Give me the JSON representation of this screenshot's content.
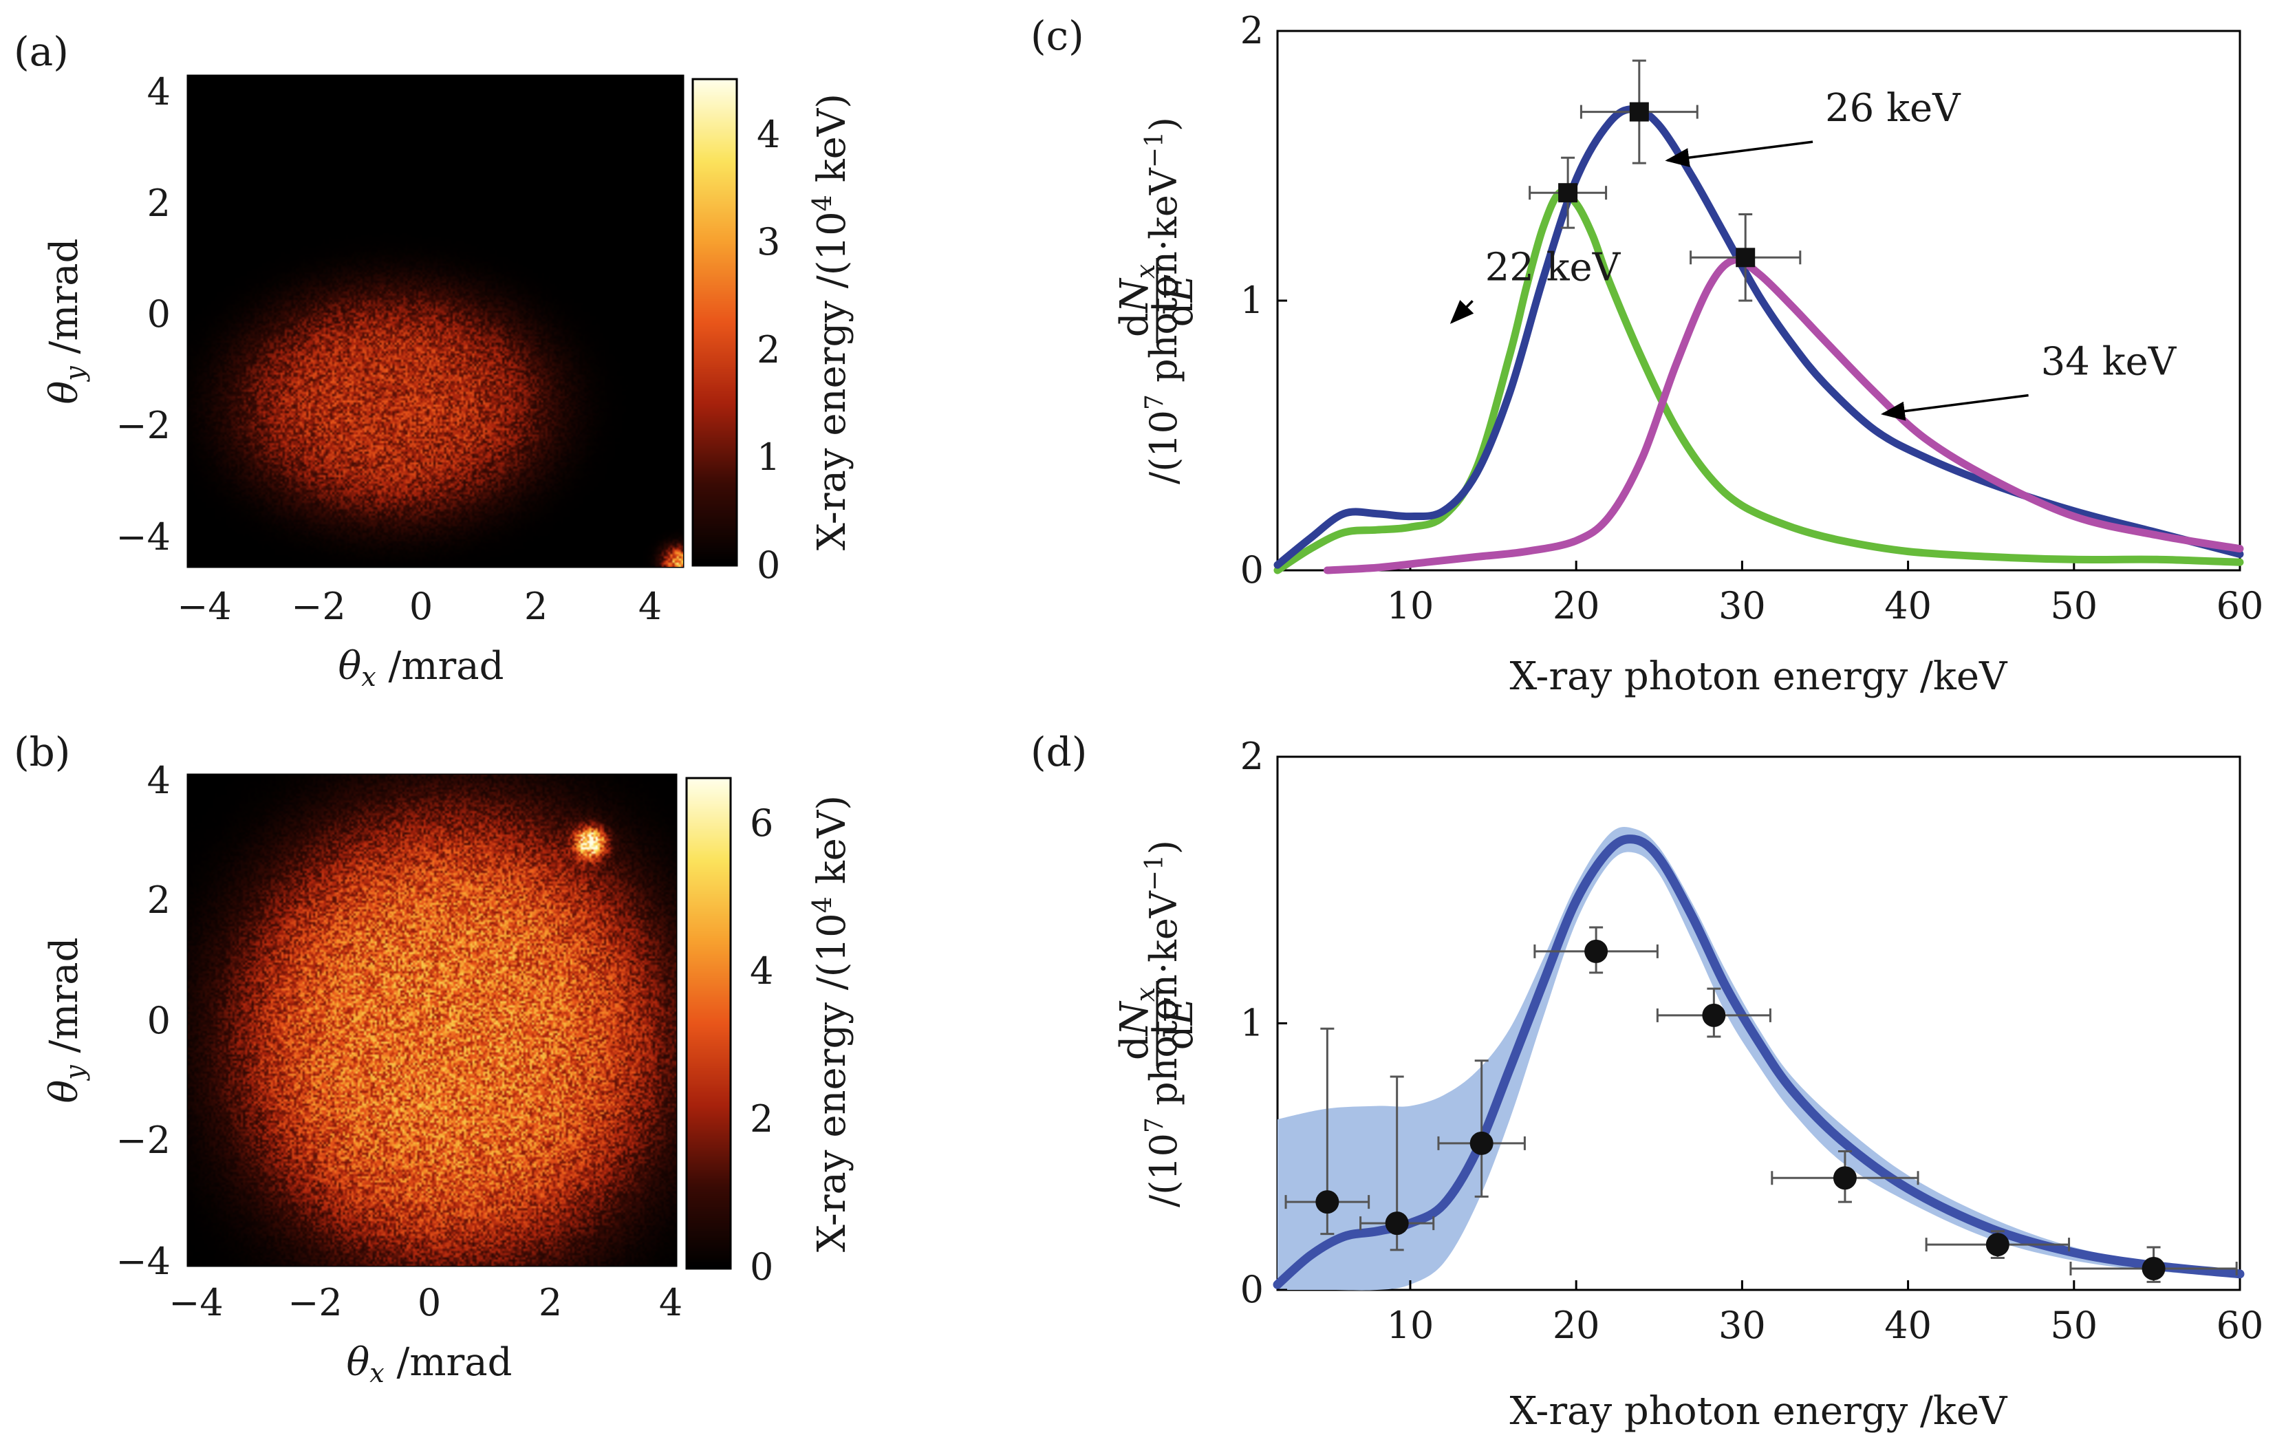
{
  "panels": {
    "a": {
      "label": "(a)"
    },
    "b": {
      "label": "(b)"
    },
    "c": {
      "label": "(c)"
    },
    "d": {
      "label": "(d)"
    }
  },
  "chart_data": [
    {
      "panel": "a",
      "type": "heatmap",
      "xlabel": "θx /mrad",
      "ylabel": "θy /mrad",
      "xlim": [
        -4.2,
        4.5
      ],
      "ylim": [
        -4.5,
        4.3
      ],
      "xticks": [
        -4,
        -2,
        0,
        2,
        4
      ],
      "yticks": [
        -4,
        -2,
        0,
        2,
        4
      ],
      "colorbar": {
        "label": "X-ray energy /(10⁴ keV)",
        "range": [
          0,
          4.5
        ],
        "ticks": [
          0,
          1,
          2,
          3,
          4
        ]
      },
      "colormap": [
        "#000000",
        "#3a0a04",
        "#a8220c",
        "#e9561a",
        "#f7a02f",
        "#fbe35c",
        "#ffffe8"
      ],
      "blobs": [
        {
          "cx": -0.6,
          "cy": -1.6,
          "sx": 2.8,
          "sy": 2.1,
          "amp": 1.6
        }
      ],
      "hotspots": [
        {
          "cx": 4.4,
          "cy": -4.4,
          "r": 0.25,
          "amp": 3.0
        }
      ]
    },
    {
      "panel": "b",
      "type": "heatmap",
      "xlabel": "θx /mrad",
      "ylabel": "θy /mrad",
      "xlim": [
        -4,
        4
      ],
      "ylim": [
        -4,
        4
      ],
      "xticks": [
        -4,
        -2,
        0,
        2,
        4
      ],
      "yticks": [
        -4,
        -2,
        0,
        2,
        4
      ],
      "colorbar": {
        "label": "X-ray energy /(10⁴ keV)",
        "range": [
          0,
          6.6
        ],
        "ticks": [
          0,
          2,
          4,
          6
        ]
      },
      "colormap": [
        "#000000",
        "#3a0a04",
        "#a8220c",
        "#e9561a",
        "#f7a02f",
        "#fbe35c",
        "#ffffe8"
      ],
      "blobs": [
        {
          "cx": 0.3,
          "cy": -0.3,
          "sx": 3.6,
          "sy": 3.8,
          "amp": 3.6
        }
      ],
      "hotspots": [
        {
          "cx": 2.6,
          "cy": 2.9,
          "r": 0.22,
          "amp": 6.4
        }
      ]
    },
    {
      "panel": "c",
      "type": "line",
      "xlabel": "X-ray photon energy /keV",
      "ylabel_fraction_num": "dNx",
      "ylabel_fraction_den": "dE",
      "ylabel_unit": "/(10⁷ photon·keV⁻¹)",
      "xlim": [
        2,
        60
      ],
      "ylim": [
        0,
        2
      ],
      "xticks": [
        10,
        20,
        30,
        40,
        50,
        60
      ],
      "yticks": [
        0,
        1,
        2
      ],
      "series": [
        {
          "name": "22 keV",
          "color": "#66bb3a",
          "x": [
            2,
            4,
            6,
            8,
            10,
            12,
            14,
            16,
            17,
            18,
            19,
            20,
            21,
            22,
            24,
            26,
            28,
            30,
            33,
            36,
            40,
            45,
            50,
            55,
            60
          ],
          "y": [
            0.0,
            0.08,
            0.14,
            0.15,
            0.16,
            0.2,
            0.38,
            0.8,
            1.05,
            1.27,
            1.4,
            1.36,
            1.24,
            1.07,
            0.78,
            0.53,
            0.35,
            0.24,
            0.16,
            0.11,
            0.07,
            0.05,
            0.04,
            0.04,
            0.03
          ]
        },
        {
          "name": "26 keV",
          "color": "#2f3f95",
          "x": [
            2,
            4,
            6,
            8,
            10,
            12,
            14,
            16,
            18,
            20,
            22,
            23.5,
            25,
            27,
            29,
            31,
            33,
            35,
            38,
            41,
            45,
            50,
            55,
            60
          ],
          "y": [
            0.02,
            0.12,
            0.21,
            0.21,
            0.2,
            0.22,
            0.36,
            0.66,
            1.08,
            1.45,
            1.66,
            1.71,
            1.65,
            1.46,
            1.24,
            1.02,
            0.84,
            0.69,
            0.52,
            0.42,
            0.32,
            0.22,
            0.14,
            0.06
          ]
        },
        {
          "name": "34 keV",
          "color": "#b04fa8",
          "x": [
            5,
            8,
            11,
            14,
            17,
            20,
            22,
            24,
            26,
            28,
            29.5,
            31,
            33,
            35,
            38,
            41,
            45,
            50,
            55,
            60
          ],
          "y": [
            0.0,
            0.01,
            0.03,
            0.05,
            0.07,
            0.11,
            0.2,
            0.42,
            0.76,
            1.05,
            1.15,
            1.1,
            0.98,
            0.85,
            0.66,
            0.49,
            0.34,
            0.2,
            0.13,
            0.08
          ]
        }
      ],
      "points": [
        {
          "x": 19.5,
          "y": 1.4,
          "xerr": 2.3,
          "yerr": 0.13
        },
        {
          "x": 23.8,
          "y": 1.7,
          "xerr": 3.5,
          "yerr": 0.19
        },
        {
          "x": 30.2,
          "y": 1.16,
          "xerr": 3.3,
          "yerr": 0.16
        }
      ],
      "annotations": [
        {
          "text": "26 keV",
          "color": "#2f3f95",
          "tx": 35.5,
          "ty": 1.64,
          "ax": 25.5,
          "ay": 1.52
        },
        {
          "text": "22 keV",
          "color": "#66bb3a",
          "tx": 15,
          "ty": 1.05,
          "ax": 12.5,
          "ay": 0.92
        },
        {
          "text": "34 keV",
          "color": "#b04fa8",
          "tx": 48.5,
          "ty": 0.7,
          "ax": 38.5,
          "ay": 0.58
        }
      ]
    },
    {
      "panel": "d",
      "type": "line",
      "xlabel": "X-ray photon energy /keV",
      "ylabel_fraction_num": "dNx",
      "ylabel_fraction_den": "dE",
      "ylabel_unit": "/(10⁷ photon·keV⁻¹)",
      "xlim": [
        2,
        60
      ],
      "ylim": [
        0,
        2
      ],
      "xticks": [
        10,
        20,
        30,
        40,
        50,
        60
      ],
      "yticks": [
        0,
        1,
        2
      ],
      "band": {
        "color": "#a9c1e6",
        "x": [
          2,
          5,
          8,
          10,
          12,
          14,
          16,
          18,
          20,
          22,
          23.5,
          25,
          27,
          29,
          31,
          33,
          36,
          40,
          45,
          50,
          55,
          60
        ],
        "upper": [
          0.64,
          0.68,
          0.69,
          0.69,
          0.73,
          0.82,
          0.98,
          1.24,
          1.52,
          1.71,
          1.73,
          1.66,
          1.45,
          1.2,
          0.98,
          0.8,
          0.62,
          0.43,
          0.27,
          0.16,
          0.1,
          0.07
        ],
        "lower": [
          0.0,
          0.0,
          0.0,
          0.02,
          0.1,
          0.32,
          0.64,
          1.02,
          1.38,
          1.6,
          1.64,
          1.56,
          1.31,
          1.04,
          0.84,
          0.67,
          0.48,
          0.33,
          0.19,
          0.11,
          0.07,
          0.05
        ]
      },
      "series": [
        {
          "color": "#3d51a8",
          "x": [
            2,
            4,
            6,
            8,
            10,
            12,
            14,
            16,
            18,
            20,
            22,
            23.5,
            25,
            27,
            29,
            31,
            33,
            36,
            40,
            45,
            50,
            55,
            60
          ],
          "y": [
            0.02,
            0.13,
            0.2,
            0.22,
            0.25,
            0.32,
            0.52,
            0.83,
            1.15,
            1.46,
            1.65,
            1.69,
            1.62,
            1.4,
            1.14,
            0.93,
            0.75,
            0.56,
            0.38,
            0.23,
            0.14,
            0.09,
            0.06
          ]
        }
      ],
      "points": [
        {
          "x": 5,
          "y": 0.33,
          "xerr": 2.5,
          "yerr_up": 0.65,
          "yerr_down": 0.12
        },
        {
          "x": 9.2,
          "y": 0.25,
          "xerr": 2.2,
          "yerr_up": 0.55,
          "yerr_down": 0.1
        },
        {
          "x": 14.3,
          "y": 0.55,
          "xerr": 2.6,
          "yerr_up": 0.31,
          "yerr_down": 0.2
        },
        {
          "x": 21.2,
          "y": 1.27,
          "xerr": 3.7,
          "yerr_up": 0.09,
          "yerr_down": 0.08
        },
        {
          "x": 28.3,
          "y": 1.03,
          "xerr": 3.4,
          "yerr_up": 0.1,
          "yerr_down": 0.08
        },
        {
          "x": 36.2,
          "y": 0.42,
          "xerr": 4.4,
          "yerr_up": 0.1,
          "yerr_down": 0.09
        },
        {
          "x": 45.4,
          "y": 0.17,
          "xerr": 4.3,
          "yerr_up": 0.05,
          "yerr_down": 0.05
        },
        {
          "x": 54.8,
          "y": 0.08,
          "xerr": 5.0,
          "yerr_up": 0.08,
          "yerr_down": 0.05
        }
      ]
    }
  ]
}
